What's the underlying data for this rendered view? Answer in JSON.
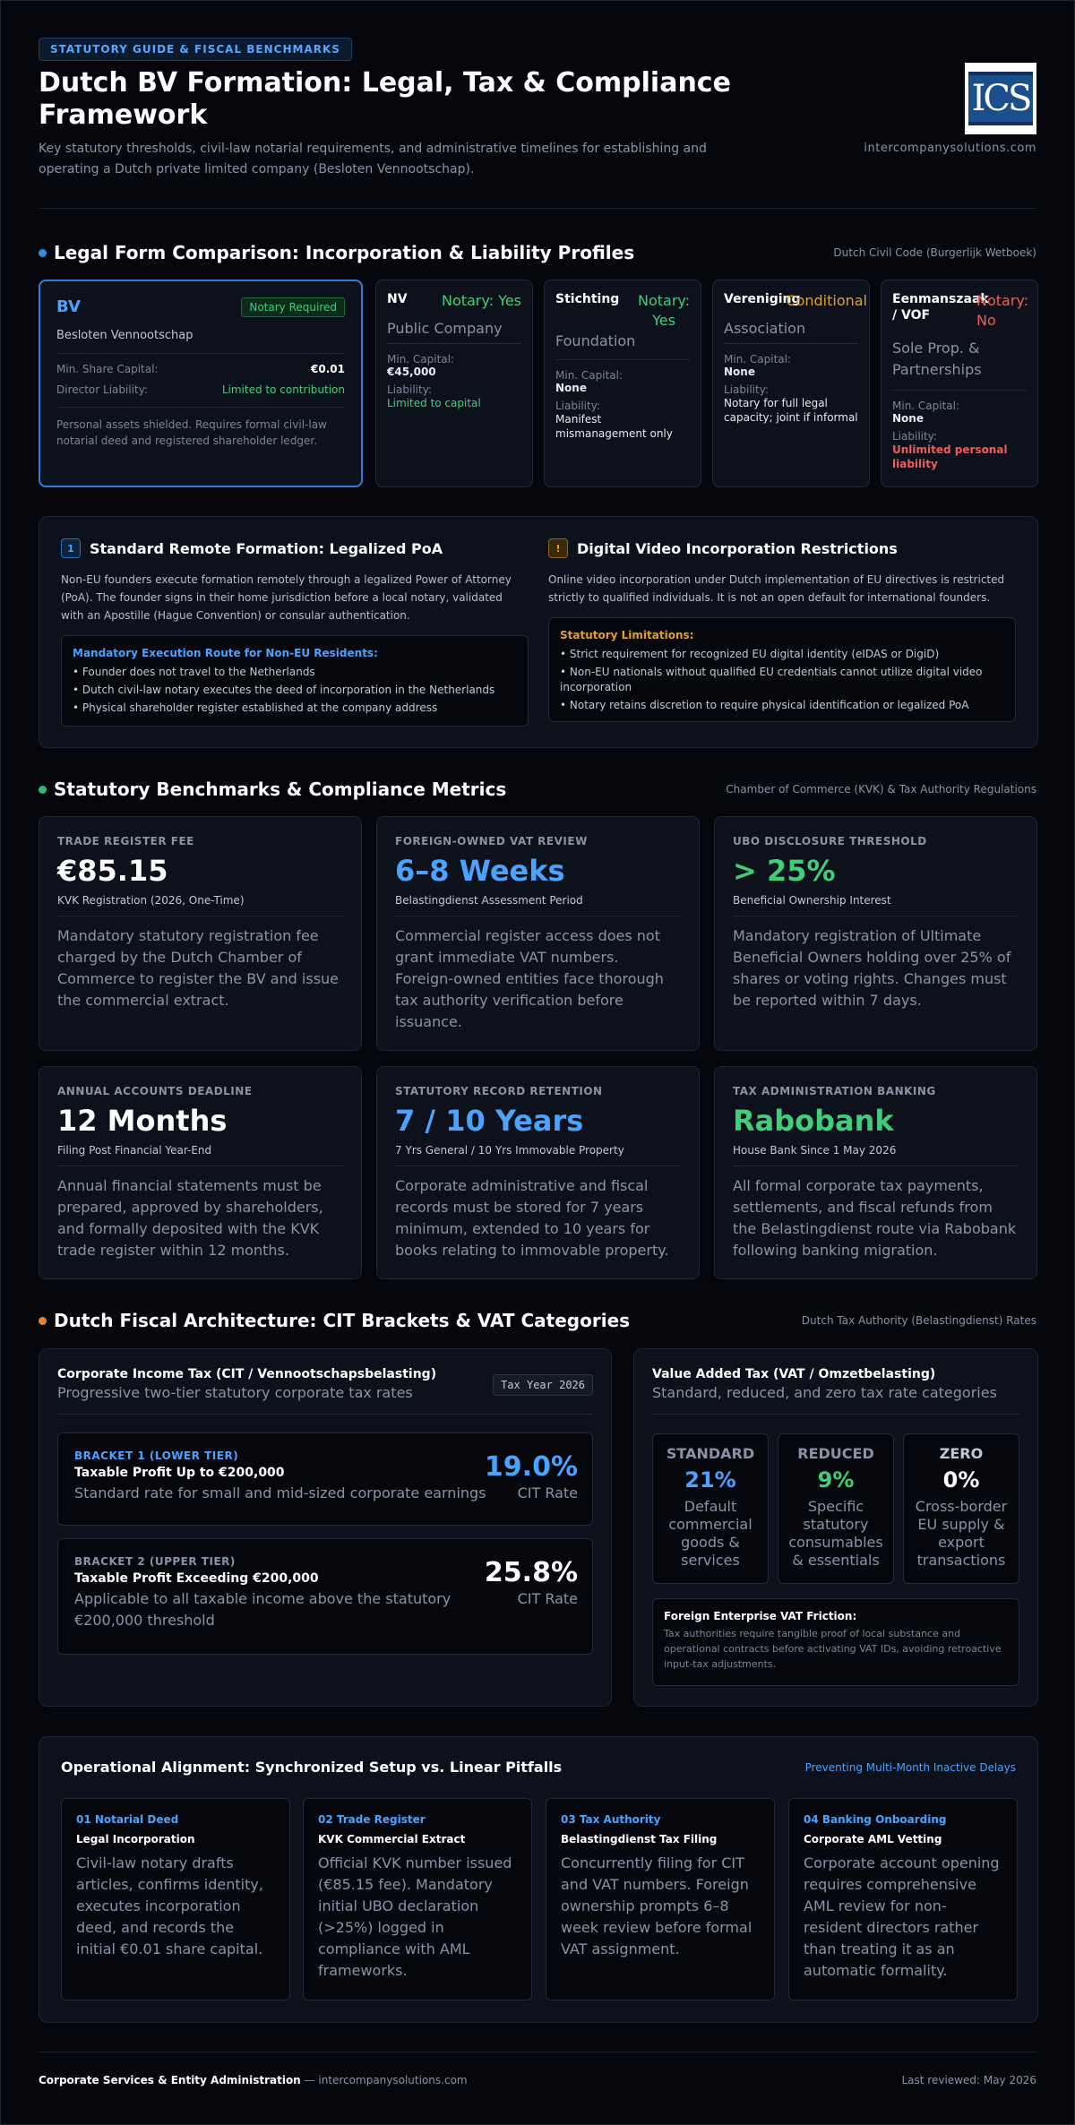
{
  "header": {
    "pill": "STATUTORY GUIDE & FISCAL BENCHMARKS",
    "title": "Dutch BV Formation: Legal, Tax & Compliance Framework",
    "subtitle": "Key statutory thresholds, civil-law notarial requirements, and administrative timelines for establishing and operating a Dutch private limited company (Besloten Vennootschap).",
    "logo_text": "ICS",
    "domain": "intercompanysolutions.com"
  },
  "legal_forms": {
    "title": "Legal Form Comparison: Incorporation & Liability Profiles",
    "source": "Dutch Civil Code (Burgerlijk Wetboek)",
    "bv": {
      "code": "BV",
      "tag": "Notary Required",
      "name": "Besloten Vennootschap",
      "capital_label": "Min. Share Capital:",
      "capital_value": "€0.01",
      "liability_label": "Director Liability:",
      "liability_value": "Limited to contribution",
      "note": "Personal assets shielded. Requires formal civil-law notarial deed and registered shareholder ledger."
    },
    "others": [
      {
        "code": "NV",
        "notary": "Notary: Yes",
        "notary_color": "#3fcf7a",
        "name": "Public Company",
        "capital_label": "Min. Capital:",
        "capital_value": "€45,000",
        "liability_label": "Liability:",
        "liability_value": "Limited to capital",
        "liability_color": "#3fcf7a"
      },
      {
        "code": "Stichting",
        "notary": "Notary: Yes",
        "notary_color": "#3fcf7a",
        "name": "Foundation",
        "capital_label": "Min. Capital:",
        "capital_value": "None",
        "liability_label": "Liability:",
        "liability_value": "Manifest mismanagement only",
        "liability_color": "#e6e9ef"
      },
      {
        "code": "Vereniging",
        "notary": "Conditional",
        "notary_color": "#e0a030",
        "name": "Association",
        "capital_label": "Min. Capital:",
        "capital_value": "None",
        "liability_label": "Liability:",
        "liability_value": "Notary for full legal capacity; joint if informal",
        "liability_color": "#e6e9ef"
      },
      {
        "code": "Eenmanszaak / VOF",
        "notary": "Notary: No",
        "notary_color": "#f25c5c",
        "name": "Sole Prop. & Partnerships",
        "capital_label": "Min. Capital:",
        "capital_value": "None",
        "liability_label": "Liability:",
        "liability_value": "Unlimited personal liability",
        "liability_color": "#f25c5c"
      }
    ]
  },
  "formation": {
    "left": {
      "badge": "1",
      "title": "Standard Remote Formation: Legalized PoA",
      "text": "Non-EU founders execute formation remotely through a legalized Power of Attorney (PoA). The founder signs in their home jurisdiction before a local notary, validated with an Apostille (Hague Convention) or consular authentication.",
      "box_title": "Mandatory Execution Route for Non-EU Residents:",
      "items": [
        "• Founder does not travel to the Netherlands",
        "• Dutch civil-law notary executes the deed of incorporation in the Netherlands",
        "• Physical shareholder register established at the company address"
      ]
    },
    "right": {
      "badge": "!",
      "title": "Digital Video Incorporation Restrictions",
      "text": "Online video incorporation under Dutch implementation of EU directives is restricted strictly to qualified individuals. It is not an open default for international founders.",
      "box_title": "Statutory Limitations:",
      "items": [
        "• Strict requirement for recognized EU digital identity (eIDAS or DigiD)",
        "• Non-EU nationals without qualified EU credentials cannot utilize digital video incorporation",
        "• Notary retains discretion to require physical identification or legalized PoA"
      ]
    }
  },
  "benchmarks": {
    "title": "Statutory Benchmarks & Compliance Metrics",
    "source": "Chamber of Commerce (KVK) & Tax Authority Regulations",
    "cards": [
      {
        "label": "TRADE REGISTER FEE",
        "value": "€85.15",
        "color": "#ffffff",
        "sub": "KVK Registration (2026, One-Time)",
        "desc": "Mandatory statutory registration fee charged by the Dutch Chamber of Commerce to register the BV and issue the commercial extract."
      },
      {
        "label": "FOREIGN-OWNED VAT REVIEW",
        "value": "6–8 Weeks",
        "color": "#4aa3ff",
        "sub": "Belastingdienst Assessment Period",
        "desc": "Commercial register access does not grant immediate VAT numbers. Foreign-owned entities face thorough tax authority verification before issuance."
      },
      {
        "label": "UBO DISCLOSURE THRESHOLD",
        "value": "> 25%",
        "color": "#3fcf7a",
        "sub": "Beneficial Ownership Interest",
        "desc": "Mandatory registration of Ultimate Beneficial Owners holding over 25% of shares or voting rights. Changes must be reported within 7 days."
      },
      {
        "label": "ANNUAL ACCOUNTS DEADLINE",
        "value": "12 Months",
        "color": "#ffffff",
        "sub": "Filing Post Financial Year-End",
        "desc": "Annual financial statements must be prepared, approved by shareholders, and formally deposited with the KVK trade register within 12 months."
      },
      {
        "label": "STATUTORY RECORD RETENTION",
        "value": "7 / 10 Years",
        "color": "#4aa3ff",
        "sub": "7 Yrs General / 10 Yrs Immovable Property",
        "desc": "Corporate administrative and fiscal records must be stored for 7 years minimum, extended to 10 years for books relating to immovable property."
      },
      {
        "label": "TAX ADMINISTRATION BANKING",
        "value": "Rabobank",
        "color": "#3fcf7a",
        "sub": "House Bank Since 1 May 2026",
        "desc": "All formal corporate tax payments, settlements, and fiscal refunds from the Belastingdienst route via Rabobank following banking migration."
      }
    ]
  },
  "fiscal": {
    "title": "Dutch Fiscal Architecture: CIT Brackets & VAT Categories",
    "source": "Dutch Tax Authority (Belastingdienst) Rates",
    "cit": {
      "title": "Corporate Income Tax (CIT / Vennootschapsbelasting)",
      "subtitle": "Progressive two-tier statutory corporate tax rates",
      "tax_year": "Tax Year 2026",
      "brackets": [
        {
          "label": "BRACKET 1 (LOWER TIER)",
          "label_color": "#4aa3ff",
          "title": "Taxable Profit Up to €200,000",
          "desc": "Standard rate for small and mid-sized corporate earnings",
          "rate": "19.0%",
          "rate_color": "#4aa3ff",
          "rate_label": "CIT Rate"
        },
        {
          "label": "BRACKET 2 (UPPER TIER)",
          "label_color": "#8a93a6",
          "title": "Taxable Profit Exceeding €200,000",
          "desc": "Applicable to all taxable income above the statutory €200,000 threshold",
          "rate": "25.8%",
          "rate_color": "#ffffff",
          "rate_label": "CIT Rate"
        }
      ]
    },
    "vat": {
      "title": "Value Added Tax (VAT / Omzetbelasting)",
      "subtitle": "Standard, reduced, and zero tax rate categories",
      "rates": [
        {
          "name": "STANDARD",
          "pct": "21%",
          "color": "#4aa3ff",
          "desc": "Default commercial goods & services"
        },
        {
          "name": "REDUCED",
          "pct": "9%",
          "color": "#3fcf7a",
          "desc": "Specific statutory consumables & essentials"
        },
        {
          "name": "ZERO",
          "pct": "0%",
          "color": "#ffffff",
          "desc": "Cross-border EU supply & export transactions"
        }
      ],
      "friction_title": "Foreign Enterprise VAT Friction:",
      "friction_text": "Tax authorities require tangible proof of local substance and operational contracts before activating VAT IDs, avoiding retroactive input-tax adjustments."
    }
  },
  "operational": {
    "title": "Operational Alignment: Synchronized Setup vs. Linear Pitfalls",
    "link": "Preventing Multi-Month Inactive Delays",
    "steps": [
      {
        "num": "01 Notarial Deed",
        "title": "Legal Incorporation",
        "desc": "Civil-law notary drafts articles, confirms identity, executes incorporation deed, and records the initial €0.01 share capital."
      },
      {
        "num": "02 Trade Register",
        "title": "KVK Commercial Extract",
        "desc": "Official KVK number issued (€85.15 fee). Mandatory initial UBO declaration (>25%) logged in compliance with AML frameworks."
      },
      {
        "num": "03 Tax Authority",
        "title": "Belastingdienst Tax Filing",
        "desc": "Concurrently filing for CIT and VAT numbers. Foreign ownership prompts 6–8 week review before formal VAT assignment."
      },
      {
        "num": "04 Banking Onboarding",
        "title": "Corporate AML Vetting",
        "desc": "Corporate account opening requires comprehensive AML review for non-resident directors rather than treating it as an automatic formality."
      }
    ]
  },
  "footer": {
    "org": "Corporate Services & Entity Administration",
    "sep": " — ",
    "domain": "intercompanysolutions.com",
    "reviewed": "Last reviewed: May 2026"
  }
}
